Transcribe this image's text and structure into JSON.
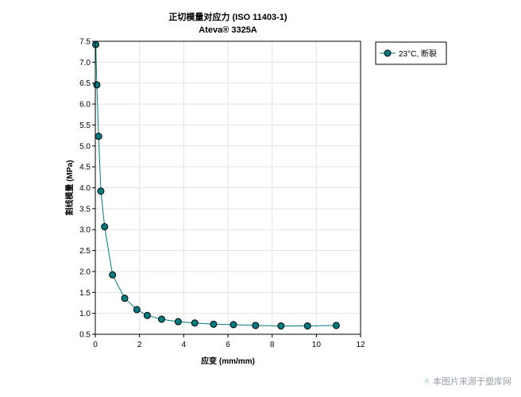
{
  "chart_data": {
    "type": "line",
    "title": "正切模量对应力 (ISO 11403-1)",
    "subtitle": "Ateva® 3325A",
    "xlabel": "应变 (mm/mm)",
    "ylabel": "割线模量 (MPa)",
    "xlim": [
      0,
      12
    ],
    "ylim": [
      0.5,
      7.5
    ],
    "xticks": [
      0,
      2,
      4,
      6,
      8,
      10,
      12
    ],
    "yticks": [
      0.5,
      1.0,
      1.5,
      2.0,
      2.5,
      3.0,
      3.5,
      4.0,
      4.5,
      5.0,
      5.5,
      6.0,
      6.5,
      7.0,
      7.5
    ],
    "grid": true,
    "legend_position": "top-right-outside",
    "series": [
      {
        "name": "23°C, 断裂",
        "color": "#007b80",
        "x": [
          0.02,
          0.07,
          0.15,
          0.25,
          0.42,
          0.78,
          1.33,
          1.88,
          2.35,
          3.0,
          3.75,
          4.5,
          5.35,
          6.25,
          7.25,
          8.4,
          9.6,
          10.9
        ],
        "y": [
          7.42,
          6.46,
          5.23,
          3.92,
          3.07,
          1.92,
          1.36,
          1.09,
          0.95,
          0.86,
          0.8,
          0.77,
          0.74,
          0.73,
          0.71,
          0.7,
          0.7,
          0.71
        ]
      }
    ]
  },
  "watermark": {
    "icon": "sparkle-icon",
    "text": "本图片来源于塑库网"
  }
}
